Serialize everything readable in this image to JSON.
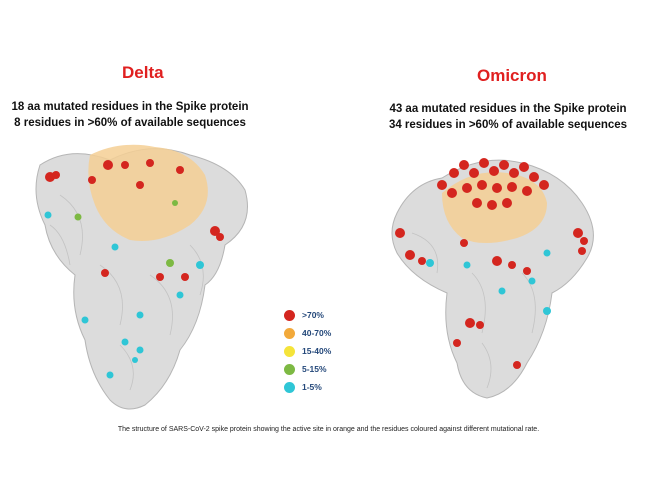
{
  "panels": [
    {
      "title": "Delta",
      "line1": "18 aa mutated residues in the Spike protein",
      "line2": "8 residues in >60% of available sequences"
    },
    {
      "title": "Omicron",
      "line1": "43 aa mutated residues in the Spike protein",
      "line2": "34 residues in >60% of available sequences"
    }
  ],
  "legend": [
    {
      "label": ">70%",
      "color": "#d4261f"
    },
    {
      "label": "40-70%",
      "color": "#f2a93a"
    },
    {
      "label": "15-40%",
      "color": "#f5e43a"
    },
    {
      "label": "5-15%",
      "color": "#7db943"
    },
    {
      "label": "1-5%",
      "color": "#2fc6d6"
    }
  ],
  "colors": {
    "protein": "#d9d9d9",
    "active_site": "#f4cf94"
  },
  "caption": "The structure of SARS-CoV-2 spike protein showing the active site in orange and the residues coloured against different mutational rate."
}
